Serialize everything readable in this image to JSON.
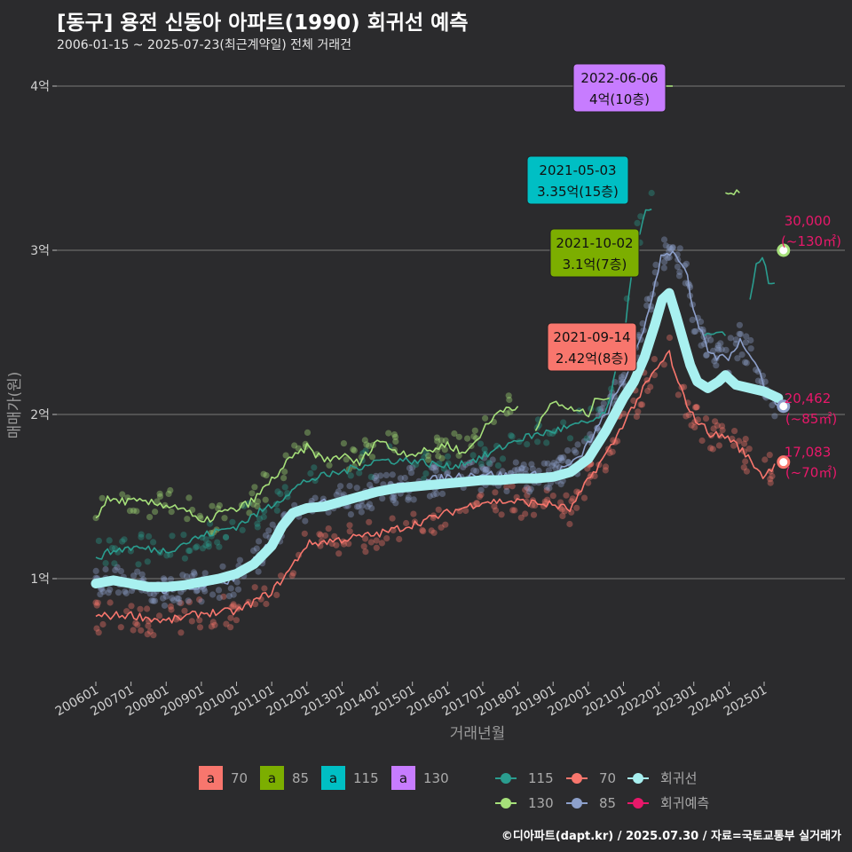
{
  "title": "[동구] 용전 신동아 아파트(1990) 회귀선 예측",
  "subtitle": "2006-01-15 ~ 2025-07-23(최근계약일) 전체 거래건",
  "credit": "©디아파트(dapt.kr) / 2025.07.30 / 자료=국토교통부 실거래가",
  "colors": {
    "bg": "#2b2b2d",
    "s70": "#f8766d",
    "s85": "#8da0cb",
    "s115": "#2a9d8f",
    "s130": "#a6e07a",
    "trend": "#a8f0f0",
    "forecast": "#e8186a",
    "lab70": "#f8766d",
    "lab85": "#7cae00",
    "lab115": "#00bfc4",
    "lab130": "#c77cff"
  },
  "chart_data": {
    "type": "line",
    "xlabel": "거래년월",
    "ylabel": "매매가(원)",
    "x_range": [
      2005.75,
      2025.9
    ],
    "ylim": [
      0.45,
      4.2
    ],
    "y_unit": "억",
    "yticks": [
      {
        "v": 1,
        "label": "1억"
      },
      {
        "v": 2,
        "label": "2억"
      },
      {
        "v": 3,
        "label": "3억"
      },
      {
        "v": 4,
        "label": "4억"
      }
    ],
    "xticks": [
      {
        "v": 2006.0,
        "label": "200601"
      },
      {
        "v": 2007.0,
        "label": "200701"
      },
      {
        "v": 2008.0,
        "label": "200801"
      },
      {
        "v": 2009.0,
        "label": "200901"
      },
      {
        "v": 2010.0,
        "label": "201001"
      },
      {
        "v": 2011.0,
        "label": "201101"
      },
      {
        "v": 2012.0,
        "label": "201201"
      },
      {
        "v": 2013.0,
        "label": "201301"
      },
      {
        "v": 2014.0,
        "label": "201401"
      },
      {
        "v": 2015.0,
        "label": "201501"
      },
      {
        "v": 2016.0,
        "label": "201601"
      },
      {
        "v": 2017.0,
        "label": "201701"
      },
      {
        "v": 2018.0,
        "label": "201801"
      },
      {
        "v": 2019.0,
        "label": "201901"
      },
      {
        "v": 2020.0,
        "label": "202001"
      },
      {
        "v": 2021.0,
        "label": "202101"
      },
      {
        "v": 2022.0,
        "label": "202201"
      },
      {
        "v": 2023.0,
        "label": "202301"
      },
      {
        "v": 2024.0,
        "label": "202401"
      },
      {
        "v": 2025.0,
        "label": "202501"
      }
    ],
    "series": [
      {
        "name": "70",
        "color_key": "s70",
        "points": [
          [
            2006.0,
            0.77
          ],
          [
            2007.0,
            0.78
          ],
          [
            2008.0,
            0.74
          ],
          [
            2009.0,
            0.79
          ],
          [
            2010.0,
            0.8
          ],
          [
            2011.0,
            0.92
          ],
          [
            2011.5,
            1.05
          ],
          [
            2012.0,
            1.21
          ],
          [
            2013.0,
            1.24
          ],
          [
            2014.0,
            1.27
          ],
          [
            2015.0,
            1.33
          ],
          [
            2016.0,
            1.4
          ],
          [
            2017.0,
            1.47
          ],
          [
            2018.0,
            1.47
          ],
          [
            2019.0,
            1.45
          ],
          [
            2019.5,
            1.42
          ],
          [
            2020.0,
            1.6
          ],
          [
            2020.7,
            1.82
          ],
          [
            2021.0,
            1.95
          ],
          [
            2021.7,
            2.2
          ],
          [
            2022.3,
            2.38
          ],
          [
            2022.5,
            2.21
          ],
          [
            2023.0,
            1.98
          ],
          [
            2023.5,
            1.88
          ],
          [
            2024.0,
            1.86
          ],
          [
            2024.5,
            1.75
          ],
          [
            2025.0,
            1.62
          ],
          [
            2025.3,
            1.7
          ]
        ]
      },
      {
        "name": "85",
        "color_key": "s85",
        "points": [
          [
            2006.0,
            1.0
          ],
          [
            2007.0,
            0.97
          ],
          [
            2008.0,
            0.93
          ],
          [
            2009.0,
            0.95
          ],
          [
            2010.0,
            1.0
          ],
          [
            2010.7,
            1.15
          ],
          [
            2011.5,
            1.4
          ],
          [
            2012.0,
            1.45
          ],
          [
            2013.0,
            1.47
          ],
          [
            2014.0,
            1.53
          ],
          [
            2015.0,
            1.58
          ],
          [
            2016.0,
            1.62
          ],
          [
            2017.0,
            1.64
          ],
          [
            2018.0,
            1.62
          ],
          [
            2019.0,
            1.64
          ],
          [
            2019.7,
            1.72
          ],
          [
            2020.5,
            2.0
          ],
          [
            2021.0,
            2.2
          ],
          [
            2021.5,
            2.45
          ],
          [
            2021.9,
            2.8
          ],
          [
            2022.1,
            2.99
          ],
          [
            2022.5,
            2.98
          ],
          [
            2022.8,
            2.85
          ],
          [
            2023.0,
            2.6
          ],
          [
            2023.5,
            2.35
          ],
          [
            2024.0,
            2.35
          ],
          [
            2024.3,
            2.45
          ],
          [
            2024.7,
            2.35
          ],
          [
            2025.0,
            2.18
          ],
          [
            2025.4,
            2.05
          ]
        ]
      },
      {
        "name": "115",
        "color_key": "s115",
        "points": [
          [
            2006.0,
            1.13
          ],
          [
            2006.5,
            1.17
          ],
          [
            2007.0,
            1.19
          ],
          [
            2008.0,
            1.17
          ],
          [
            2009.0,
            1.26
          ],
          [
            2010.0,
            1.32
          ],
          [
            2011.0,
            1.45
          ],
          [
            2012.0,
            1.6
          ],
          [
            2013.0,
            1.65
          ],
          [
            2014.0,
            1.72
          ],
          [
            2015.0,
            1.72
          ],
          [
            2016.0,
            1.68
          ],
          [
            2017.0,
            1.74
          ],
          [
            2018.0,
            1.85
          ],
          [
            2019.0,
            1.9
          ],
          [
            2020.0,
            1.95
          ],
          [
            2020.5,
            2.0
          ],
          [
            2021.0,
            2.45
          ],
          [
            2021.3,
            3.0
          ],
          [
            2021.6,
            3.22
          ],
          [
            2021.8,
            3.25
          ]
        ]
      },
      {
        "name": "115b",
        "color_key": "s115",
        "points": [
          [
            2023.3,
            2.48
          ],
          [
            2023.9,
            2.48
          ]
        ]
      },
      {
        "name": "115c",
        "color_key": "s115",
        "points": [
          [
            2024.6,
            2.7
          ],
          [
            2024.8,
            2.95
          ],
          [
            2025.0,
            2.95
          ],
          [
            2025.1,
            2.8
          ],
          [
            2025.3,
            2.8
          ]
        ]
      },
      {
        "name": "130",
        "color_key": "s130",
        "points": [
          [
            2006.0,
            1.37
          ],
          [
            2006.3,
            1.48
          ],
          [
            2007.0,
            1.47
          ],
          [
            2008.0,
            1.45
          ],
          [
            2008.5,
            1.43
          ],
          [
            2009.0,
            1.33
          ],
          [
            2009.5,
            1.4
          ],
          [
            2010.0,
            1.42
          ],
          [
            2010.5,
            1.48
          ],
          [
            2011.0,
            1.6
          ],
          [
            2011.5,
            1.72
          ],
          [
            2012.0,
            1.8
          ],
          [
            2012.5,
            1.72
          ],
          [
            2013.0,
            1.75
          ],
          [
            2013.5,
            1.7
          ],
          [
            2014.0,
            1.85
          ],
          [
            2014.5,
            1.78
          ],
          [
            2015.0,
            1.76
          ],
          [
            2015.5,
            1.78
          ],
          [
            2016.0,
            1.82
          ],
          [
            2016.5,
            1.76
          ],
          [
            2017.0,
            1.9
          ],
          [
            2017.5,
            2.03
          ],
          [
            2017.8,
            2.05
          ],
          [
            2018.0,
            2.05
          ]
        ]
      },
      {
        "name": "130b",
        "color_key": "s130",
        "points": [
          [
            2018.5,
            1.9
          ],
          [
            2019.0,
            2.08
          ],
          [
            2019.5,
            2.03
          ],
          [
            2020.0,
            2.0
          ],
          [
            2020.3,
            2.12
          ],
          [
            2020.6,
            2.1
          ]
        ]
      },
      {
        "name": "130c",
        "color_key": "s130",
        "points": [
          [
            2022.1,
            4.0
          ],
          [
            2022.4,
            4.0
          ]
        ]
      },
      {
        "name": "130d",
        "color_key": "s130",
        "points": [
          [
            2023.9,
            3.35
          ],
          [
            2024.3,
            3.35
          ]
        ]
      }
    ],
    "trend": [
      [
        2006.0,
        0.97
      ],
      [
        2006.5,
        0.99
      ],
      [
        2007.0,
        0.97
      ],
      [
        2007.5,
        0.95
      ],
      [
        2008.0,
        0.95
      ],
      [
        2008.5,
        0.96
      ],
      [
        2009.0,
        0.98
      ],
      [
        2009.5,
        1.0
      ],
      [
        2010.0,
        1.03
      ],
      [
        2010.5,
        1.09
      ],
      [
        2011.0,
        1.2
      ],
      [
        2011.3,
        1.32
      ],
      [
        2011.6,
        1.4
      ],
      [
        2012.0,
        1.43
      ],
      [
        2012.5,
        1.44
      ],
      [
        2013.0,
        1.47
      ],
      [
        2013.5,
        1.5
      ],
      [
        2014.0,
        1.53
      ],
      [
        2014.5,
        1.55
      ],
      [
        2015.0,
        1.56
      ],
      [
        2015.5,
        1.57
      ],
      [
        2016.0,
        1.58
      ],
      [
        2016.5,
        1.59
      ],
      [
        2017.0,
        1.6
      ],
      [
        2017.5,
        1.6
      ],
      [
        2018.0,
        1.61
      ],
      [
        2018.5,
        1.61
      ],
      [
        2019.0,
        1.62
      ],
      [
        2019.5,
        1.65
      ],
      [
        2020.0,
        1.73
      ],
      [
        2020.5,
        1.9
      ],
      [
        2021.0,
        2.1
      ],
      [
        2021.3,
        2.2
      ],
      [
        2021.6,
        2.35
      ],
      [
        2021.9,
        2.55
      ],
      [
        2022.1,
        2.7
      ],
      [
        2022.3,
        2.74
      ],
      [
        2022.5,
        2.6
      ],
      [
        2022.7,
        2.45
      ],
      [
        2022.9,
        2.3
      ],
      [
        2023.1,
        2.2
      ],
      [
        2023.4,
        2.16
      ],
      [
        2023.7,
        2.2
      ],
      [
        2023.9,
        2.24
      ],
      [
        2024.2,
        2.18
      ],
      [
        2024.6,
        2.16
      ],
      [
        2025.0,
        2.14
      ],
      [
        2025.4,
        2.1
      ]
    ],
    "forecast_points": [
      {
        "x": 2025.55,
        "y": 3.0,
        "color_key": "s130",
        "lines": [
          "30,000",
          "(~130㎡)"
        ]
      },
      {
        "x": 2025.55,
        "y": 2.05,
        "color_key": "s85",
        "lines": [
          "20,462",
          "(~85㎡)"
        ]
      },
      {
        "x": 2025.55,
        "y": 1.71,
        "color_key": "s70",
        "lines": [
          "17,083",
          "(~70㎡)"
        ]
      }
    ],
    "annotations": [
      {
        "x": 2022.05,
        "y": 4.0,
        "bg_key": "lab130",
        "lines": [
          "2022-06-06",
          "4억(10층)"
        ]
      },
      {
        "x": 2021.85,
        "y": 3.35,
        "bg_key": "lab115",
        "lines": [
          "2021-05-03",
          "3.35억(15층)"
        ]
      },
      {
        "x": 2021.85,
        "y": 3.1,
        "bg_key": "lab85",
        "lines": [
          "2021-10-02",
          "3.1억(7층)"
        ]
      },
      {
        "x": 2021.85,
        "y": 2.42,
        "bg_key": "lab70",
        "lines": [
          "2021-09-14",
          "2.42억(8층)"
        ]
      }
    ],
    "legend_labels": [
      {
        "key": "lab70",
        "text": "70"
      },
      {
        "key": "lab85",
        "text": "85"
      },
      {
        "key": "lab115",
        "text": "115"
      },
      {
        "key": "lab130",
        "text": "130"
      }
    ],
    "legend_lines": [
      {
        "key": "s115",
        "text": "115"
      },
      {
        "key": "s70",
        "text": "70"
      },
      {
        "key": "trend",
        "text": "회귀선"
      },
      {
        "key": "s130",
        "text": "130"
      },
      {
        "key": "s85",
        "text": "85"
      },
      {
        "key": "forecast",
        "text": "회귀예측"
      }
    ],
    "legend_label_glyph": "a"
  }
}
